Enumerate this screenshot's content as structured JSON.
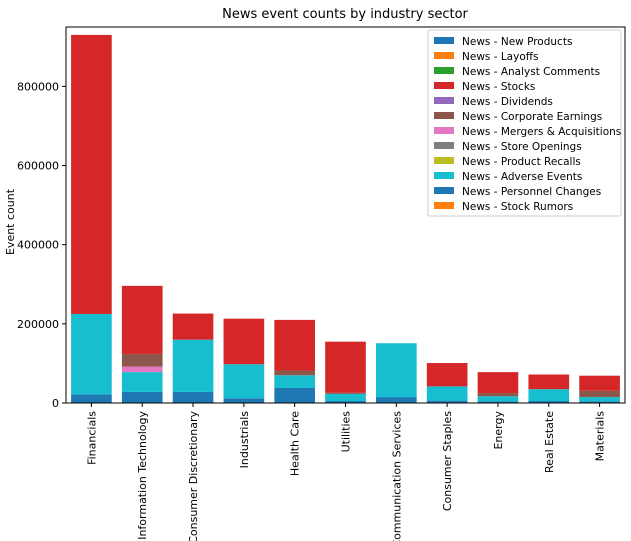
{
  "chart_data": {
    "type": "bar",
    "stacked": true,
    "title": "News event counts by industry sector",
    "xlabel": "",
    "ylabel": "Event count",
    "ylim": [
      0,
      950000
    ],
    "yticks": [
      0,
      200000,
      400000,
      600000,
      800000
    ],
    "ytick_labels": [
      "0",
      "200000",
      "400000",
      "600000",
      "800000"
    ],
    "grid": false,
    "legend_position": "top-right",
    "categories": [
      "Financials",
      "Information Technology",
      "Consumer Discretionary",
      "Industrials",
      "Health Care",
      "Utilities",
      "Communication Services",
      "Consumer Staples",
      "Energy",
      "Real Estate",
      "Materials"
    ],
    "series": [
      {
        "name": "News - New Products",
        "color": "#1f77b4",
        "values": [
          22000,
          28000,
          28000,
          12000,
          38000,
          5000,
          15000,
          6000,
          4000,
          5000,
          4000
        ]
      },
      {
        "name": "News - Layoffs",
        "color": "#ff7f0e",
        "values": [
          0,
          0,
          0,
          0,
          0,
          0,
          0,
          0,
          0,
          0,
          0
        ]
      },
      {
        "name": "News - Analyst Comments",
        "color": "#2ca02c",
        "values": [
          0,
          0,
          0,
          0,
          0,
          0,
          0,
          0,
          0,
          0,
          0
        ]
      },
      {
        "name": "News - Stocks",
        "color": "#d62728",
        "values": [
          0,
          0,
          0,
          0,
          0,
          0,
          0,
          0,
          0,
          0,
          0
        ]
      },
      {
        "name": "News - Dividends",
        "color": "#9467bd",
        "values": [
          0,
          0,
          0,
          0,
          0,
          0,
          0,
          0,
          0,
          0,
          0
        ]
      },
      {
        "name": "News - Corporate Earnings",
        "color": "#8c564b",
        "values": [
          0,
          0,
          0,
          0,
          0,
          0,
          0,
          0,
          0,
          0,
          0
        ]
      },
      {
        "name": "News - Mergers & Acquisitions",
        "color": "#e377c2",
        "values": [
          0,
          0,
          0,
          0,
          0,
          0,
          0,
          0,
          0,
          0,
          0
        ]
      },
      {
        "name": "News - Store Openings",
        "color": "#7f7f7f",
        "values": [
          0,
          0,
          0,
          0,
          0,
          0,
          0,
          0,
          0,
          0,
          0
        ]
      },
      {
        "name": "News - Product Recalls",
        "color": "#bcbd22",
        "values": [
          0,
          0,
          0,
          0,
          0,
          0,
          0,
          0,
          0,
          0,
          0
        ]
      },
      {
        "name": "News - Adverse Events",
        "color": "#17becf",
        "values": [
          203000,
          50000,
          132000,
          86000,
          32000,
          18000,
          136000,
          36000,
          13000,
          30000,
          11000
        ]
      },
      {
        "name": "News - Personnel Changes",
        "color": "#1f77b4",
        "values": [
          0,
          0,
          0,
          0,
          0,
          0,
          0,
          0,
          0,
          0,
          0
        ]
      },
      {
        "name": "News - Stock Rumors",
        "color": "#ff7f0e",
        "values": [
          0,
          0,
          0,
          0,
          0,
          0,
          0,
          0,
          0,
          0,
          0
        ]
      },
      {
        "name": "",
        "color": "#e377c2",
        "values": [
          0,
          14000,
          0,
          0,
          0,
          0,
          0,
          0,
          0,
          0,
          0
        ]
      },
      {
        "name": "",
        "color": "#8c564b",
        "values": [
          0,
          32000,
          0,
          0,
          12000,
          3000,
          0,
          0,
          8000,
          0,
          16000
        ]
      },
      {
        "name": "",
        "color": "#d62728",
        "values": [
          705000,
          172000,
          66000,
          115000,
          128000,
          129000,
          0,
          59000,
          53000,
          37000,
          38000
        ]
      }
    ]
  }
}
